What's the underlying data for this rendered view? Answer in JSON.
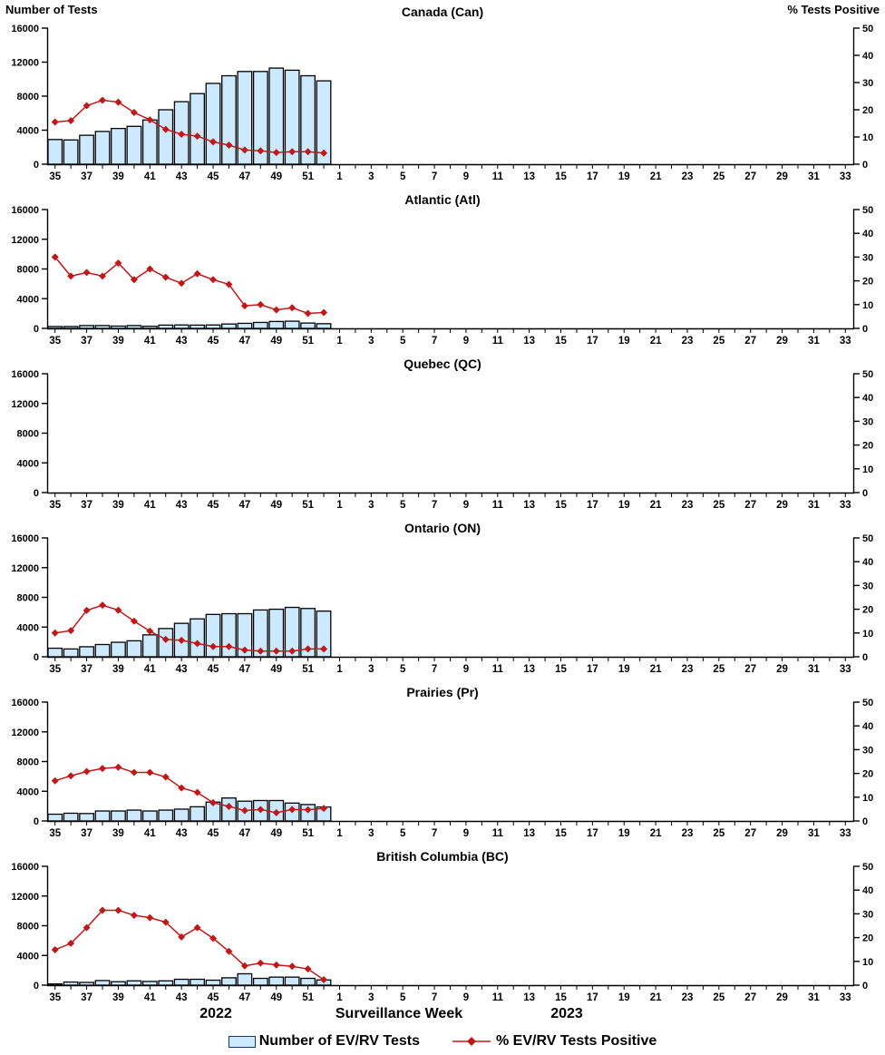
{
  "header": {
    "left_axis_title": "Number of Tests",
    "right_axis_title": "% Tests Positive"
  },
  "footer": {
    "year_2022": "2022",
    "x_axis_title": "Surveillance Week",
    "year_2023": "2023"
  },
  "legend": [
    {
      "swatch": "bar",
      "label": "Number of EV/RV Tests"
    },
    {
      "swatch": "line",
      "label": "% EV/RV Tests Positive"
    }
  ],
  "colors": {
    "bar_fill": "#CCE9FF",
    "bar_stroke": "#000000",
    "line": "#C01818",
    "axis": "#000000"
  },
  "axes": {
    "left": {
      "ticks": [
        0,
        4000,
        8000,
        12000,
        16000
      ],
      "max": 16000
    },
    "right": {
      "ticks": [
        0,
        10,
        20,
        30,
        40,
        50
      ],
      "max": 50
    },
    "x": {
      "weeks": [
        35,
        36,
        37,
        38,
        39,
        40,
        41,
        42,
        43,
        44,
        45,
        46,
        47,
        48,
        49,
        50,
        51,
        52,
        1,
        2,
        3,
        4,
        5,
        6,
        7,
        8,
        9,
        10,
        11,
        12,
        13,
        14,
        15,
        16,
        17,
        18,
        19,
        20,
        21,
        22,
        23,
        24,
        25,
        26,
        27,
        28,
        29,
        30,
        31,
        32,
        33
      ],
      "labeled_weeks": [
        35,
        37,
        39,
        41,
        43,
        45,
        47,
        49,
        51,
        1,
        3,
        5,
        7,
        9,
        11,
        13,
        15,
        17,
        19,
        21,
        23,
        25,
        27,
        29,
        31,
        33
      ]
    }
  },
  "chart_data": [
    {
      "type": "bar",
      "title": "Canada (Can)",
      "x_weeks": [
        35,
        36,
        37,
        38,
        39,
        40,
        41,
        42,
        43,
        44,
        45,
        46,
        47,
        48,
        49,
        50,
        51,
        52
      ],
      "ylim_left": [
        0,
        16000
      ],
      "ylim_right": [
        0,
        50
      ],
      "series": [
        {
          "name": "Number of EV/RV Tests",
          "type": "bar",
          "axis": "left",
          "values": [
            2900,
            2850,
            3400,
            3850,
            4200,
            4450,
            5200,
            6400,
            7350,
            8300,
            9500,
            10400,
            10900,
            10900,
            11300,
            11050,
            10400,
            9800
          ]
        },
        {
          "name": "% EV/RV Tests Positive",
          "type": "line",
          "axis": "right",
          "values": [
            15.5,
            16,
            21.5,
            23.5,
            22.8,
            19,
            16.3,
            12.8,
            11,
            10.3,
            8.2,
            7,
            5.2,
            4.9,
            4.3,
            4.6,
            4.6,
            4.1
          ]
        }
      ]
    },
    {
      "type": "bar",
      "title": "Atlantic (Atl)",
      "x_weeks": [
        35,
        36,
        37,
        38,
        39,
        40,
        41,
        42,
        43,
        44,
        45,
        46,
        47,
        48,
        49,
        50,
        51,
        52
      ],
      "ylim_left": [
        0,
        16000
      ],
      "ylim_right": [
        0,
        50
      ],
      "series": [
        {
          "name": "Number of EV/RV Tests",
          "type": "bar",
          "axis": "left",
          "values": [
            250,
            250,
            380,
            380,
            310,
            380,
            290,
            440,
            460,
            440,
            460,
            590,
            680,
            800,
            930,
            970,
            720,
            630
          ]
        },
        {
          "name": "% EV/RV Tests Positive",
          "type": "line",
          "axis": "right",
          "values": [
            30,
            22,
            23.5,
            22,
            27.5,
            20.5,
            25,
            21.5,
            19,
            23,
            20.5,
            18.5,
            9.5,
            10,
            7.8,
            8.7,
            6.3,
            6.7
          ]
        }
      ]
    },
    {
      "type": "bar",
      "title": "Quebec (QC)",
      "x_weeks": [],
      "ylim_left": [
        0,
        16000
      ],
      "ylim_right": [
        0,
        50
      ],
      "series": [
        {
          "name": "Number of EV/RV Tests",
          "type": "bar",
          "axis": "left",
          "values": []
        },
        {
          "name": "% EV/RV Tests Positive",
          "type": "line",
          "axis": "right",
          "values": []
        }
      ]
    },
    {
      "type": "bar",
      "title": "Ontario (ON)",
      "x_weeks": [
        35,
        36,
        37,
        38,
        39,
        40,
        41,
        42,
        43,
        44,
        45,
        46,
        47,
        48,
        49,
        50,
        51,
        52
      ],
      "ylim_left": [
        0,
        16000
      ],
      "ylim_right": [
        0,
        50
      ],
      "series": [
        {
          "name": "Number of EV/RV Tests",
          "type": "bar",
          "axis": "left",
          "values": [
            1150,
            1050,
            1350,
            1650,
            1950,
            2150,
            2950,
            3800,
            4500,
            5100,
            5700,
            5800,
            5800,
            6300,
            6400,
            6650,
            6500,
            6150
          ]
        },
        {
          "name": "% EV/RV Tests Positive",
          "type": "line",
          "axis": "right",
          "values": [
            10,
            11,
            19.5,
            21.7,
            19.6,
            15,
            10.8,
            7.3,
            6.9,
            5.6,
            4.3,
            4.3,
            2.8,
            2.4,
            2.4,
            2.4,
            3.3,
            3.3
          ]
        }
      ]
    },
    {
      "type": "bar",
      "title": "Prairies (Pr)",
      "x_weeks": [
        35,
        36,
        37,
        38,
        39,
        40,
        41,
        42,
        43,
        44,
        45,
        46,
        47,
        48,
        49,
        50,
        51,
        52
      ],
      "ylim_left": [
        0,
        16000
      ],
      "ylim_right": [
        0,
        50
      ],
      "series": [
        {
          "name": "Number of EV/RV Tests",
          "type": "bar",
          "axis": "left",
          "values": [
            910,
            1040,
            1000,
            1340,
            1340,
            1460,
            1340,
            1460,
            1590,
            1910,
            2540,
            3090,
            2660,
            2750,
            2750,
            2410,
            2210,
            1880
          ]
        },
        {
          "name": "% EV/RV Tests Positive",
          "type": "line",
          "axis": "right",
          "values": [
            16.9,
            19,
            20.8,
            22.1,
            22.6,
            20.4,
            20.4,
            18.5,
            13.9,
            12,
            7.7,
            6.1,
            4.4,
            4.8,
            3.5,
            4.8,
            4.7,
            5.3
          ]
        }
      ]
    },
    {
      "type": "bar",
      "title": "British Columbia (BC)",
      "x_weeks": [
        35,
        36,
        37,
        38,
        39,
        40,
        41,
        42,
        43,
        44,
        45,
        46,
        47,
        48,
        49,
        50,
        51,
        52
      ],
      "ylim_left": [
        0,
        16000
      ],
      "ylim_right": [
        0,
        50
      ],
      "series": [
        {
          "name": "Number of EV/RV Tests",
          "type": "bar",
          "axis": "left",
          "values": [
            170,
            420,
            370,
            620,
            460,
            580,
            500,
            580,
            790,
            790,
            670,
            990,
            1530,
            915,
            1080,
            1080,
            915,
            700
          ]
        },
        {
          "name": "% EV/RV Tests Positive",
          "type": "line",
          "axis": "right",
          "values": [
            14.9,
            17.6,
            24.2,
            31.5,
            31.5,
            29.4,
            28.4,
            26.5,
            20.3,
            24.2,
            19.7,
            14.2,
            8.1,
            9.3,
            8.5,
            7.9,
            6.8,
            2.3
          ]
        }
      ]
    }
  ]
}
